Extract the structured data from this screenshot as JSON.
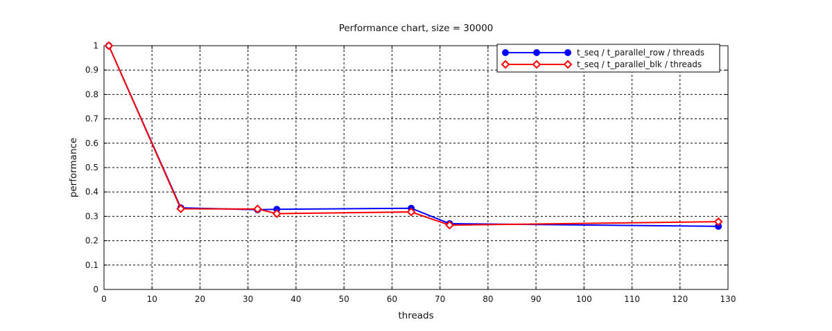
{
  "chart_data": {
    "type": "line",
    "title": "Performance chart, size = 30000",
    "xlabel": "threads",
    "ylabel": "performance",
    "xlim": [
      0,
      130
    ],
    "ylim": [
      0,
      1
    ],
    "xticks": [
      0,
      10,
      20,
      30,
      40,
      50,
      60,
      70,
      80,
      90,
      100,
      110,
      120,
      130
    ],
    "yticks": [
      0,
      0.1,
      0.2,
      0.3,
      0.4,
      0.5,
      0.6,
      0.7,
      0.8,
      0.9,
      1
    ],
    "grid": true,
    "legend_position": "top-right",
    "series": [
      {
        "name": "t_seq / t_parallel_row / threads",
        "color": "#0000ff",
        "marker": "filled-circle",
        "x": [
          1,
          16,
          32,
          36,
          64,
          72,
          128
        ],
        "y": [
          1.0,
          0.335,
          0.327,
          0.329,
          0.333,
          0.27,
          0.259
        ]
      },
      {
        "name": "t_seq / t_parallel_blk / threads",
        "color": "#ff0000",
        "marker": "open-diamond",
        "x": [
          1,
          16,
          32,
          36,
          64,
          72,
          128
        ],
        "y": [
          1.0,
          0.331,
          0.33,
          0.311,
          0.318,
          0.264,
          0.278
        ]
      }
    ]
  }
}
